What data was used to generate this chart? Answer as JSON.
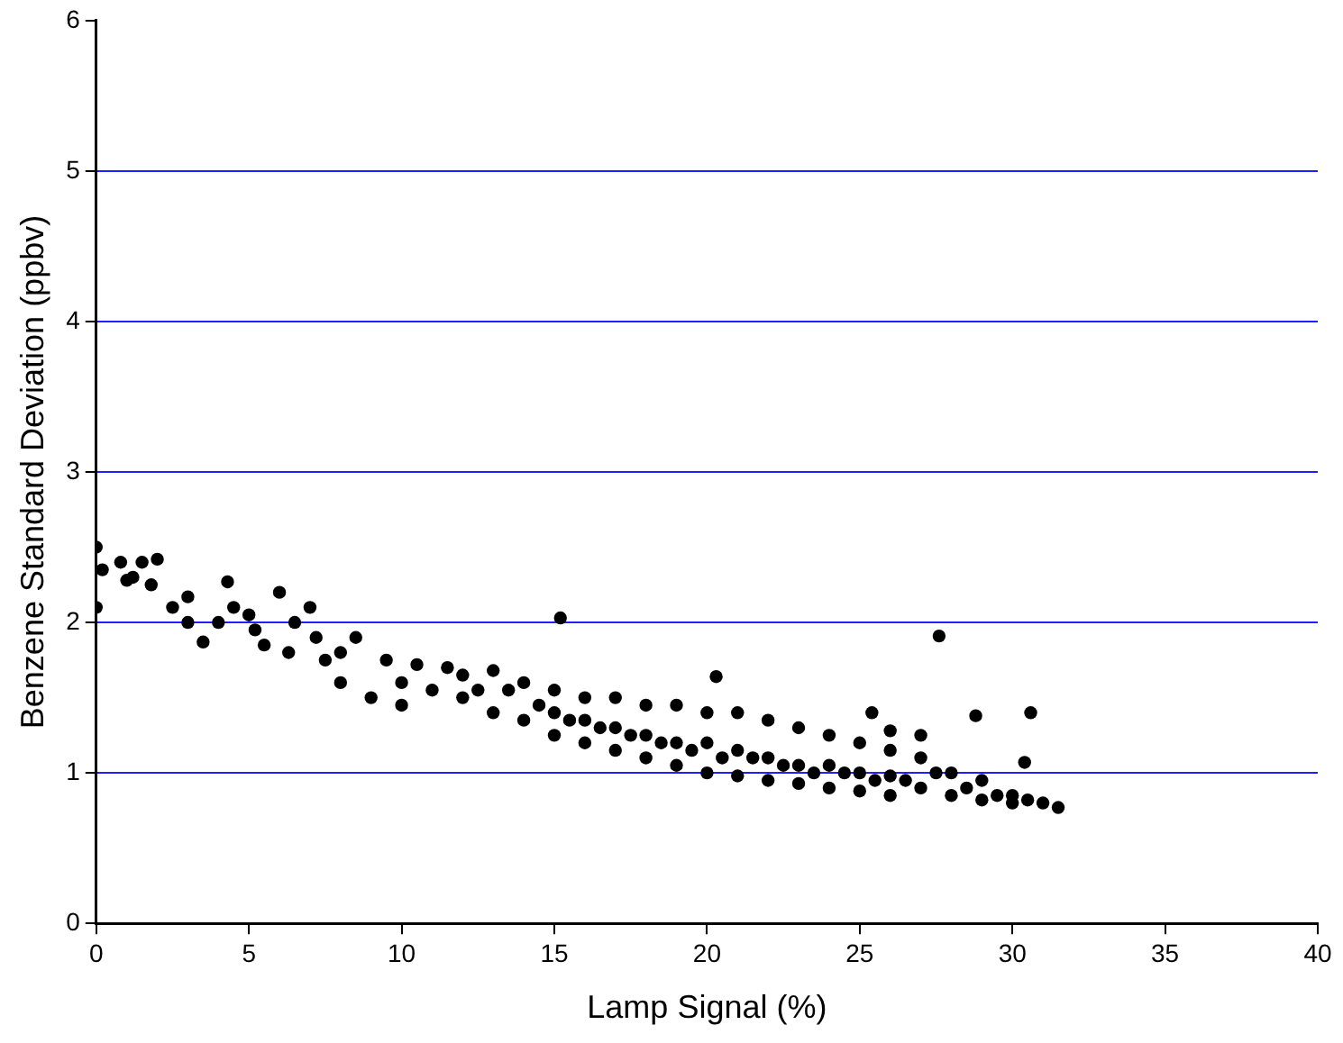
{
  "chart_data": {
    "type": "scatter",
    "xlabel": "Lamp Signal (%)",
    "ylabel": "Benzene Standard Deviation (ppbv)",
    "xlim": [
      0,
      40
    ],
    "xticks": [
      0,
      5,
      10,
      15,
      20,
      25,
      30,
      35,
      40
    ],
    "ylim": [
      0,
      6
    ],
    "yticks": [
      0,
      1,
      2,
      3,
      4,
      5,
      6
    ],
    "grid": "y",
    "legend": false,
    "marker": "circle",
    "series": [
      {
        "color": "#000000",
        "x": [
          0,
          0,
          0.2,
          0.8,
          1.2,
          1.5,
          2,
          1.8,
          1,
          2.5,
          3,
          3,
          3.5,
          4,
          4.3,
          4.5,
          5,
          5.2,
          5.5,
          6,
          6.3,
          6.5,
          7,
          7.2,
          7.5,
          8,
          8,
          8.5,
          9,
          9.5,
          10,
          10,
          10.5,
          11,
          11.5,
          12,
          12,
          12.5,
          13,
          13,
          13.5,
          14,
          14,
          14.5,
          15,
          15,
          15,
          15.5,
          16,
          16,
          16,
          16.5,
          17,
          17,
          17,
          17.5,
          18,
          18,
          18,
          18.5,
          19,
          19,
          19,
          19.5,
          20,
          20,
          20,
          20.5,
          21,
          21,
          21,
          21.5,
          22,
          22,
          22,
          22.5,
          23,
          23,
          23,
          23.5,
          24,
          24,
          24,
          24.5,
          25,
          25,
          25,
          25.5,
          26,
          26,
          26,
          26.5,
          27,
          27,
          27.5,
          28,
          28,
          28.5,
          29,
          29,
          29.5,
          30,
          30,
          30.5,
          31,
          31.5,
          15.2,
          20.3,
          27.6,
          25.4,
          28.8,
          30.6,
          30.4,
          26,
          27
        ],
        "values": [
          2.5,
          2.1,
          2.35,
          2.4,
          2.3,
          2.4,
          2.42,
          2.25,
          2.28,
          2.1,
          2.17,
          2.0,
          1.87,
          2.0,
          2.27,
          2.1,
          2.05,
          1.95,
          1.85,
          2.2,
          1.8,
          2.0,
          2.1,
          1.9,
          1.75,
          1.6,
          1.8,
          1.9,
          1.5,
          1.75,
          1.6,
          1.45,
          1.72,
          1.55,
          1.7,
          1.65,
          1.5,
          1.55,
          1.68,
          1.4,
          1.55,
          1.6,
          1.35,
          1.45,
          1.55,
          1.4,
          1.25,
          1.35,
          1.5,
          1.35,
          1.2,
          1.3,
          1.5,
          1.3,
          1.15,
          1.25,
          1.45,
          1.25,
          1.1,
          1.2,
          1.45,
          1.2,
          1.05,
          1.15,
          1.4,
          1.2,
          1.0,
          1.1,
          1.4,
          1.15,
          0.98,
          1.1,
          1.35,
          1.1,
          0.95,
          1.05,
          1.3,
          1.05,
          0.93,
          1.0,
          1.25,
          1.05,
          0.9,
          1.0,
          1.2,
          1.0,
          0.88,
          0.95,
          1.15,
          0.98,
          0.85,
          0.95,
          1.1,
          0.9,
          1.0,
          1.0,
          0.85,
          0.9,
          0.95,
          0.82,
          0.85,
          0.85,
          0.8,
          0.82,
          0.8,
          0.77,
          2.03,
          1.64,
          1.91,
          1.4,
          1.38,
          1.4,
          1.07,
          1.28,
          1.25
        ]
      }
    ]
  }
}
